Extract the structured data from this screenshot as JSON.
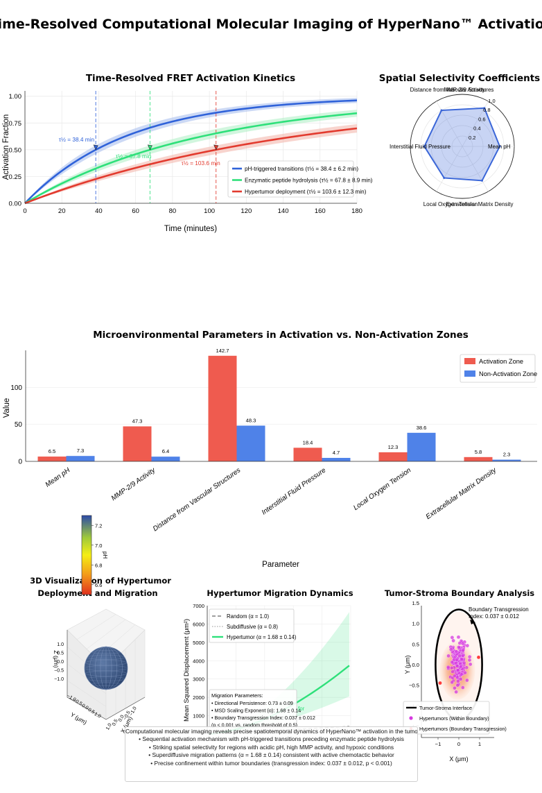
{
  "suptitle": "Time-Resolved Computational Molecular Imaging of HyperNano™ Activation",
  "chart_data": [
    {
      "id": "kinetics",
      "type": "line",
      "title": "Time-Resolved FRET Activation Kinetics",
      "xlabel": "Time (minutes)",
      "ylabel": "Activation Fraction",
      "xlim": [
        0,
        180
      ],
      "ylim": [
        0,
        1.05
      ],
      "xticks": [
        0,
        20,
        40,
        60,
        80,
        100,
        120,
        140,
        160,
        180
      ],
      "yticks": [
        "0.00",
        "0.25",
        "0.50",
        "0.75",
        "1.00"
      ],
      "grid": true,
      "legend": "lower-right",
      "series": [
        {
          "name": "pH-triggered transitions (τ½ = 38.4 ± 6.2 min)",
          "color": "#2f62d9",
          "band": "#aac0ee",
          "t_half": 38.4,
          "t_half_label": "τ½ = 38.4 min"
        },
        {
          "name": "Enzymatic peptide hydrolysis (τ½ = 67.8 ± 8.9 min)",
          "color": "#2ee07a",
          "band": "#b2f0c8",
          "t_half": 67.8,
          "t_half_label": "τ½ = 67.8 min"
        },
        {
          "name": "Hypertumor deployment (τ½ = 103.6 ± 12.3 min)",
          "color": "#e23a2e",
          "band": "#f3b7ad",
          "t_half": 103.6,
          "t_half_label": "τ½ = 103.6 min"
        }
      ]
    },
    {
      "id": "radar",
      "type": "radar",
      "title": "Spatial Selectivity Coefficients",
      "axes": [
        "Mean pH",
        "MMP-2/9 Activity",
        "Distance from Vascular Structures",
        "Interstitial Fluid Pressure",
        "Local Oxygen Tension",
        "Extracellular Matrix Density"
      ],
      "values": [
        0.72,
        0.85,
        0.8,
        0.73,
        0.7,
        0.76
      ],
      "rticks": [
        "0.2",
        "0.4",
        "0.6",
        "0.8",
        "1.0"
      ],
      "color": "#3a66d8"
    },
    {
      "id": "params",
      "type": "bar",
      "title": "Microenvironmental Parameters in Activation vs. Non-Activation Zones",
      "xlabel": "Parameter",
      "ylabel": "Value",
      "ylim": [
        0,
        150
      ],
      "yticks": [
        0,
        50,
        100
      ],
      "legend": "top-right",
      "categories": [
        "Mean pH",
        "MMP-2/9 Activity",
        "Distance from Vascular Structures",
        "Interstitial Fluid Pressure",
        "Local Oxygen Tension",
        "Extracellular Matrix Density"
      ],
      "series": [
        {
          "name": "Activation Zone",
          "color": "#ef5b4f",
          "values": [
            6.5,
            47.3,
            142.7,
            18.4,
            12.3,
            5.8
          ],
          "labels": [
            "6.5",
            "47.3",
            "142.7",
            "18.4",
            "12.3",
            "5.8"
          ]
        },
        {
          "name": "Non-Activation Zone",
          "color": "#4f82e8",
          "values": [
            7.3,
            6.4,
            48.3,
            4.7,
            38.6,
            2.3
          ],
          "labels": [
            "7.3",
            "6.4",
            "48.3",
            "4.7",
            "38.6",
            "2.3"
          ]
        }
      ]
    },
    {
      "id": "colorbar",
      "type": "colorbar",
      "label": "pH",
      "range": [
        6.5,
        7.3
      ],
      "ticks": [
        "7.2",
        "7.0",
        "6.8",
        "6.6"
      ]
    },
    {
      "id": "sphere3d",
      "type": "surface3d",
      "title": "3D Visualization of Hypertumor Deployment and Migration",
      "title_lines": [
        "3D Visualization of Hypertumor",
        "Deployment and Migration"
      ],
      "xlabel": "X (μm)",
      "ylabel": "Y (μm)",
      "zlabel": "Z (μm)",
      "ticks": [
        "1.0",
        "0.5",
        "0.0",
        "−0.5",
        "−1.0"
      ]
    },
    {
      "id": "msd",
      "type": "line",
      "title": "Hypertumor Migration Dynamics",
      "ylabel": "Mean Squared Displacement (μm²)",
      "ylim": [
        0,
        7000
      ],
      "yticks": [
        1000,
        2000,
        3000,
        4000,
        5000,
        6000,
        7000
      ],
      "legend": "top-left",
      "series": [
        {
          "name": "Random (α = 1.0)",
          "color": "#666666",
          "dash": "dashed"
        },
        {
          "name": "Subdiffusive (α = 0.8)",
          "color": "#aaaaaa",
          "dash": "dotted"
        },
        {
          "name": "Hypertumor (α = 1.68 ± 0.14)",
          "color": "#2ee07a",
          "dash": "solid"
        }
      ],
      "annotation_title": "Migration Parameters:",
      "annotations": [
        "• Directional Persistence: 0.73 ± 0.09",
        "• MSD Scaling Exponent (α): 1.68 ± 0.14",
        "• Boundary Transgression Index: 0.037 ± 0.012",
        "(p < 0.001 vs. random threshold of 0.5)"
      ],
      "partial_label": "for"
    },
    {
      "id": "boundary",
      "type": "scatter",
      "title": "Tumor-Stroma Boundary Analysis",
      "xlabel": "X (μm)",
      "ylabel": "Y (μm)",
      "xticks": [
        "−1",
        "0",
        "1"
      ],
      "yticks": [
        "1.5",
        "1.0",
        "0.5",
        "0.0",
        "−0.5",
        "−1.0",
        "−1.5"
      ],
      "annotation": [
        "Boundary Transgression",
        "Index: 0.037 ± 0.012"
      ],
      "legend": "lower-left",
      "series": [
        {
          "name": "Tumor-Stroma Interface",
          "color": "#000000"
        },
        {
          "name": "Hypertumors (Within Boundary)",
          "color": "#d63ae0"
        },
        {
          "name": "Hypertumors (Boundary Transgression)",
          "color": "#ff3b3b"
        }
      ]
    }
  ],
  "summary": {
    "lead": "Computational molecular imaging reveals precise spatiotemporal dynamics of HyperNano™ activation in the tumor microenvironment:",
    "items": [
      "• Sequential activation mechanism with pH-triggered transitions preceding enzymatic peptide hydrolysis",
      "• Striking spatial selectivity for regions with acidic pH, high MMP activity, and hypoxic conditions",
      "• Superdiffusive migration patterns (α = 1.68 ± 0.14) consistent with active chemotactic behavior",
      "• Precise confinement within tumor boundaries (transgression index: 0.037 ± 0.012, p < 0.001)"
    ]
  }
}
